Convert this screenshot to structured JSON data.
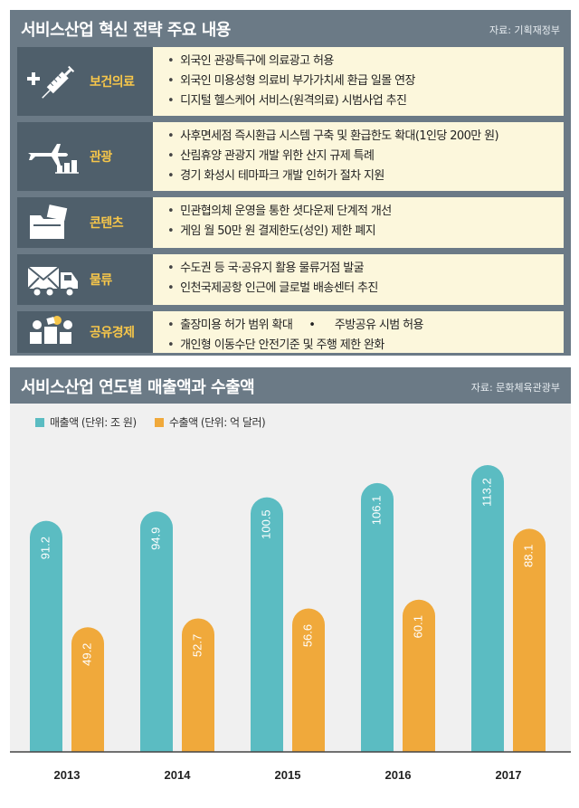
{
  "strategy": {
    "title": "서비스산업 혁신 전략 주요 내용",
    "source": "자료: 기획재정부",
    "rows": [
      {
        "category": "보건의료",
        "icon": "medical-syringe-icon",
        "items": [
          "외국인 관광특구에 의료광고 허용",
          "외국인 미용성형 의료비 부가가치세 환급 일몰 연장",
          "디지털 헬스케어 서비스(원격의료) 시범사업 추진"
        ]
      },
      {
        "category": "관광",
        "icon": "airplane-icon",
        "items": [
          "사후면세점 즉시환급 시스템 구축 및 환급한도 확대(1인당 200만 원)",
          "산림휴양 관광지 개발 위한 산지 규제 특례",
          "경기 화성시 테마파크 개발 인허가 절차 지원"
        ]
      },
      {
        "category": "콘텐츠",
        "icon": "content-folder-icon",
        "items": [
          "민관협의체 운영을 통한 셧다운제 단계적 개선",
          "게임 월 50만 원 결제한도(성인) 제한 폐지"
        ]
      },
      {
        "category": "물류",
        "icon": "delivery-truck-icon",
        "items": [
          "수도권 등 국·공유지 활용 물류거점 발굴",
          "인천국제공항 인근에 글로벌 배송센터 추진"
        ]
      },
      {
        "category": "공유경제",
        "icon": "sharing-economy-icon",
        "items": [
          "출장미용 허가 범위 확대",
          "주방공유 시범 허용",
          "개인형 이동수단 안전기준 및 주행 제한 완화"
        ]
      }
    ]
  },
  "colors": {
    "header_bg": "#6b7a86",
    "label_bg": "#4f5f6b",
    "label_text": "#f6c64a",
    "content_bg": "#fcf7dc",
    "sales": "#5bbcc2",
    "exports": "#f0a93b",
    "chart_bg": "#f0f0f0"
  },
  "chart_header": {
    "title": "서비스산업 연도별 매출액과 수출액",
    "source": "자료: 문화체육관광부"
  },
  "chart_data": {
    "type": "bar",
    "title": "서비스산업 연도별 매출액과 수출액",
    "categories": [
      "2013",
      "2014",
      "2015",
      "2016",
      "2017"
    ],
    "series": [
      {
        "name": "매출액 (단위: 조 원)",
        "values": [
          91.2,
          94.9,
          100.5,
          106.1,
          113.2
        ]
      },
      {
        "name": "수출액 (단위: 억 달러)",
        "values": [
          49.2,
          52.7,
          56.6,
          60.1,
          88.1
        ]
      }
    ],
    "ylim": [
      0,
      125
    ],
    "xlabel": "",
    "ylabel": "",
    "legend": "top-left"
  }
}
